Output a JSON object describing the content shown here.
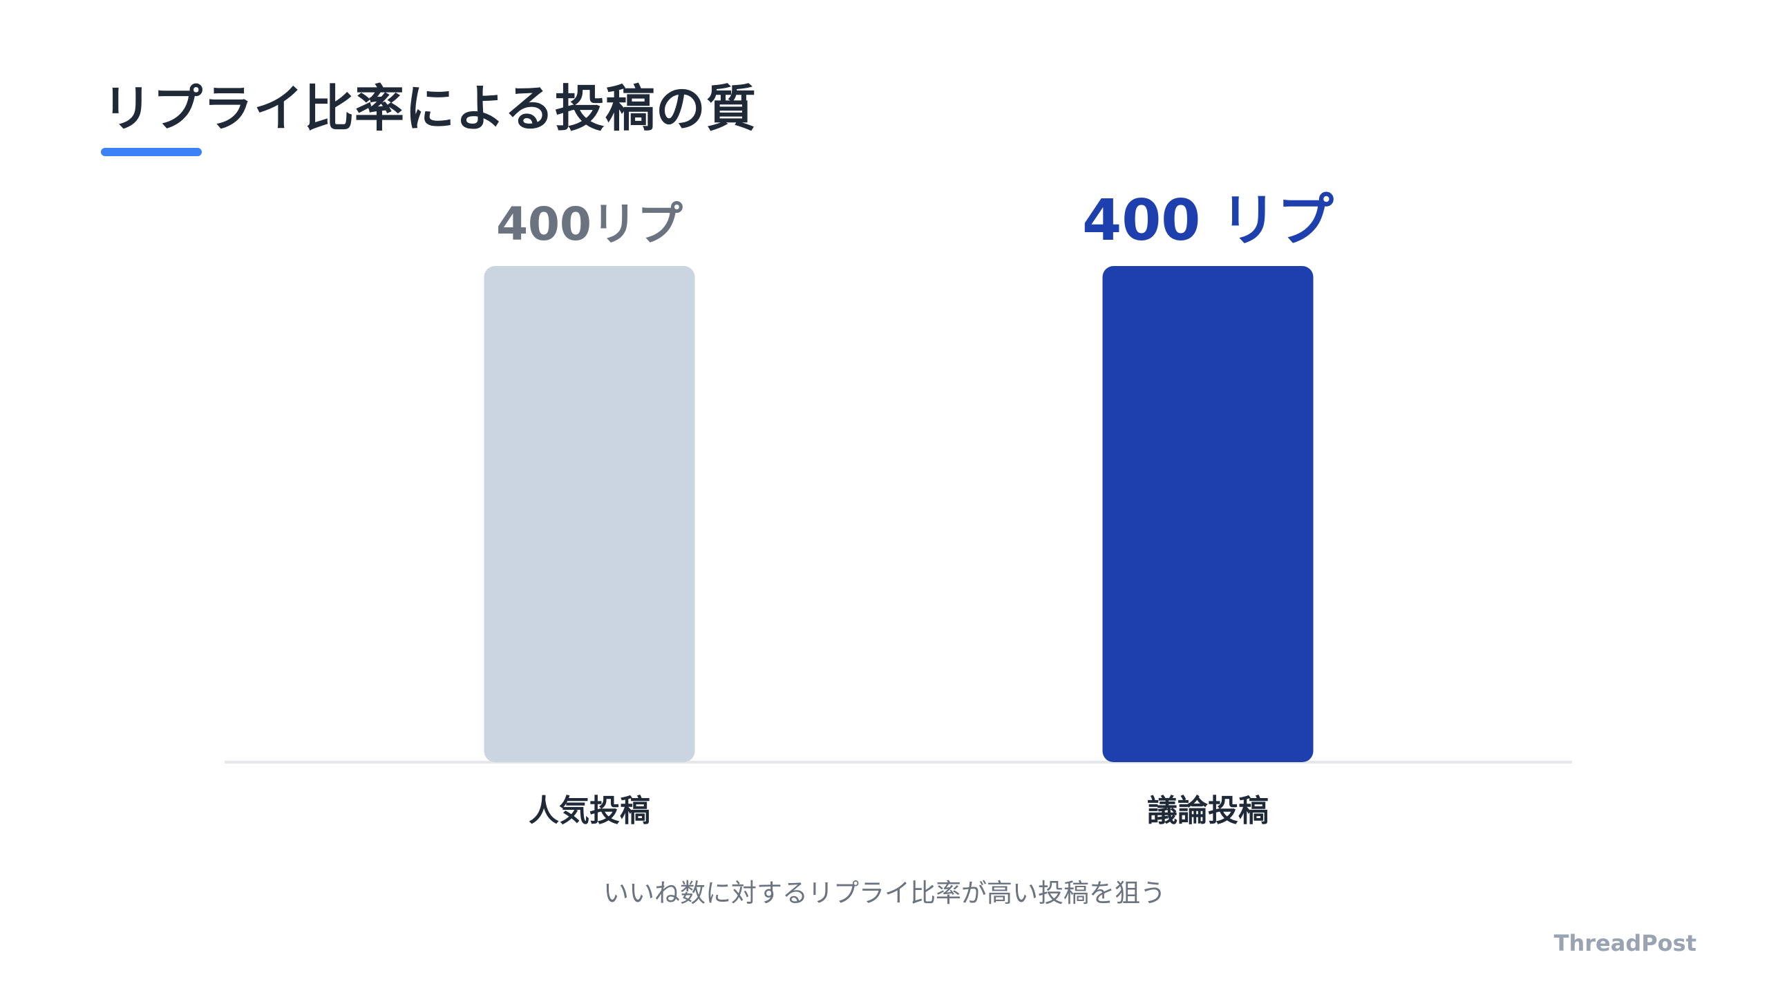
{
  "header": {
    "title": "リプライ比率による投稿の質",
    "accent_color": "#3b82f6"
  },
  "chart_data": {
    "type": "bar",
    "title": "リプライ比率による投稿の質",
    "categories": [
      "人気投稿",
      "議論投稿"
    ],
    "values": [
      400,
      400
    ],
    "value_labels": [
      "400リプ",
      "400 リプ"
    ],
    "colors": [
      "#cbd5e1",
      "#1e40af"
    ],
    "label_colors": [
      "#6b7280",
      "#1e40af"
    ],
    "ylim": [
      0,
      400
    ],
    "grid": false,
    "legend": "none"
  },
  "footer": {
    "subtitle": "いいね数に対するリプライ比率が高い投稿を狙う",
    "brand": "ThreadPost"
  }
}
